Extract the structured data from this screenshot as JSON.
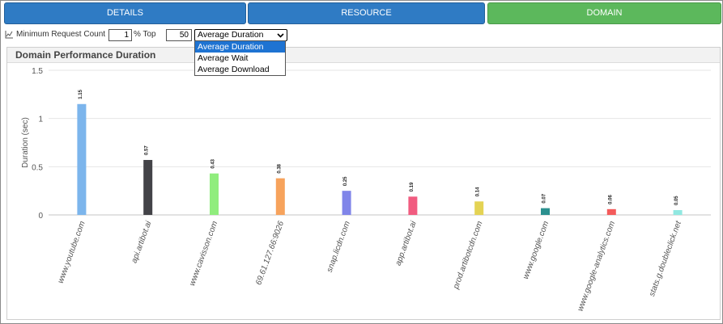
{
  "tabs": [
    {
      "label": "DETAILS",
      "active": false
    },
    {
      "label": "RESOURCE",
      "active": false
    },
    {
      "label": "DOMAIN",
      "active": true
    }
  ],
  "toolbar": {
    "min_request_label": "Minimum Request Count",
    "min_request_value": "1",
    "top_label": "% Top",
    "top_value": "50",
    "metric_selected": "Average Duration",
    "metric_options": [
      "Average Duration",
      "Average Wait",
      "Average Download"
    ]
  },
  "panel": {
    "title": "Domain Performance Duration"
  },
  "colors": {
    "tab_blue": "#2f7bc4",
    "tab_green": "#5cb85c",
    "option_highlight": "#1e73d2"
  },
  "chart_data": {
    "type": "bar",
    "ylabel": "Duration (sec)",
    "ylim": [
      0,
      1.5
    ],
    "yticks": [
      "0",
      "0.5",
      "1",
      "1.5"
    ],
    "grid": true,
    "categories": [
      "www.youtube.com",
      "api.artibot.ai",
      "www.cavisson.com",
      "69.61.127.66:9026",
      "snap.licdn.com",
      "app.artibot.ai",
      "prod.artibotcdn.com",
      "www.google.com",
      "www.google-analytics.com",
      "stats.g.doubleclick.net"
    ],
    "values": [
      1.15,
      0.57,
      0.43,
      0.38,
      0.25,
      0.19,
      0.14,
      0.07,
      0.06,
      0.05
    ],
    "labels": [
      "1.15",
      "0.57",
      "0.43",
      "0.38",
      "0.25",
      "0.19",
      "0.14",
      "0.07",
      "0.06",
      "0.05"
    ],
    "colors": [
      "#7cb5ec",
      "#434348",
      "#90ed7d",
      "#f7a35c",
      "#8085e9",
      "#f15c80",
      "#e4d354",
      "#2b908f",
      "#f45b5b",
      "#91e8e1"
    ]
  }
}
